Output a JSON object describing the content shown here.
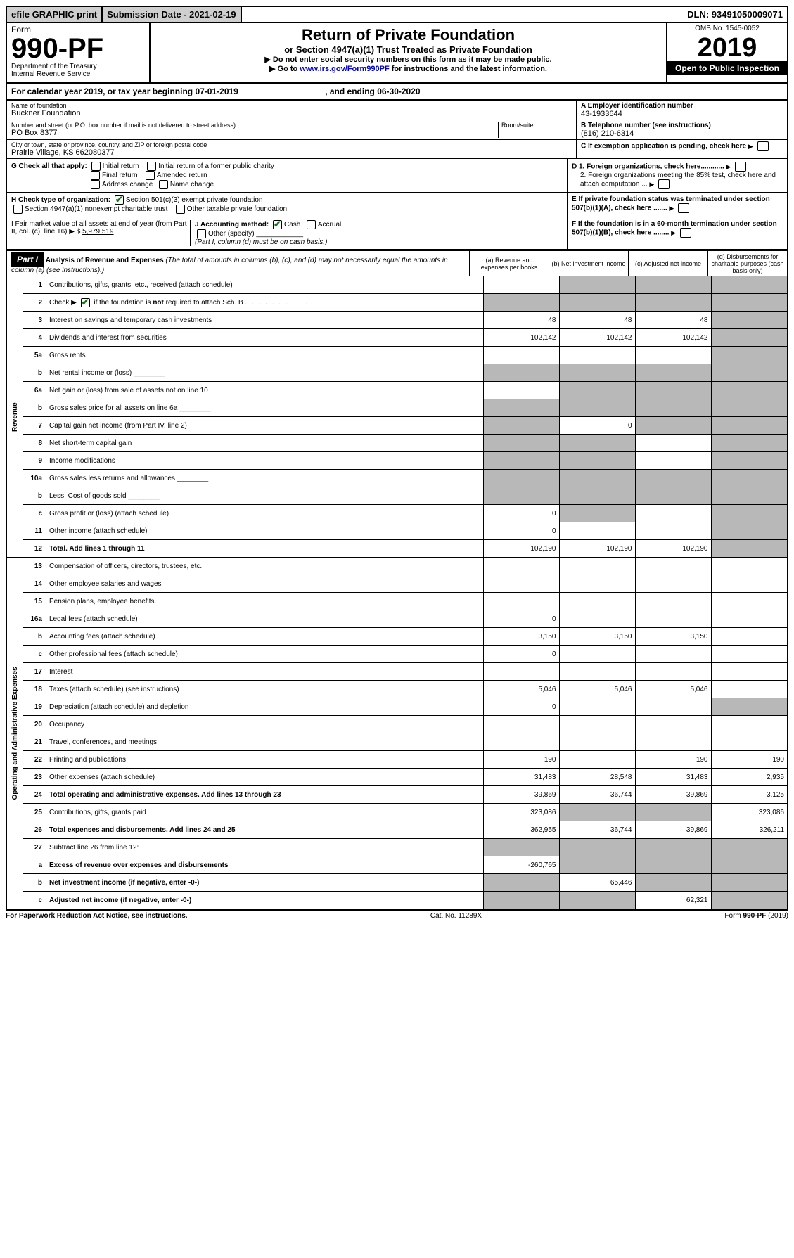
{
  "topbar": {
    "efile": "efile GRAPHIC print",
    "submission": "Submission Date - 2021-02-19",
    "dln": "DLN: 93491050009071"
  },
  "header": {
    "form_word": "Form",
    "form_no": "990-PF",
    "dept1": "Department of the Treasury",
    "dept2": "Internal Revenue Service",
    "title": "Return of Private Foundation",
    "subtitle": "or Section 4947(a)(1) Trust Treated as Private Foundation",
    "note1": "▶ Do not enter social security numbers on this form as it may be made public.",
    "note2_pre": "▶ Go to ",
    "note2_link": "www.irs.gov/Form990PF",
    "note2_post": " for instructions and the latest information.",
    "omb": "OMB No. 1545-0052",
    "year": "2019",
    "inspection": "Open to Public Inspection"
  },
  "calyear": {
    "text_pre": "For calendar year 2019, or tax year beginning ",
    "begin": "07-01-2019",
    "mid": " , and ending ",
    "end": "06-30-2020"
  },
  "id": {
    "name_label": "Name of foundation",
    "name": "Buckner Foundation",
    "addr_label": "Number and street (or P.O. box number if mail is not delivered to street address)",
    "room_label": "Room/suite",
    "addr": "PO Box 8377",
    "city_label": "City or town, state or province, country, and ZIP or foreign postal code",
    "city": "Prairie Village, KS  662080377",
    "a_label": "A Employer identification number",
    "a_val": "43-1933644",
    "b_label": "B Telephone number (see instructions)",
    "b_val": "(816) 210-6314",
    "c_label": "C If exemption application is pending, check here"
  },
  "checks": {
    "g_label": "G Check all that apply:",
    "g_opts": [
      "Initial return",
      "Initial return of a former public charity",
      "Final return",
      "Amended return",
      "Address change",
      "Name change"
    ],
    "h_label": "H Check type of organization:",
    "h1": "Section 501(c)(3) exempt private foundation",
    "h2": "Section 4947(a)(1) nonexempt charitable trust",
    "h3": "Other taxable private foundation",
    "i_label": "I Fair market value of all assets at end of year (from Part II, col. (c), line 16) ▶ $",
    "i_val": "5,979,519",
    "j_label": "J Accounting method:",
    "j_cash": "Cash",
    "j_accrual": "Accrual",
    "j_other": "Other (specify)",
    "j_note": "(Part I, column (d) must be on cash basis.)",
    "d1": "D 1. Foreign organizations, check here............",
    "d2": "2. Foreign organizations meeting the 85% test, check here and attach computation ...",
    "e": "E  If private foundation status was terminated under section 507(b)(1)(A), check here .......",
    "f": "F  If the foundation is in a 60-month termination under section 507(b)(1)(B), check here ........"
  },
  "part1": {
    "label": "Part I",
    "title": "Analysis of Revenue and Expenses",
    "title_note": "(The total of amounts in columns (b), (c), and (d) may not necessarily equal the amounts in column (a) (see instructions).)",
    "col_a": "(a)   Revenue and expenses per books",
    "col_b": "(b)  Net investment income",
    "col_c": "(c)  Adjusted net income",
    "col_d": "(d)  Disbursements for charitable purposes (cash basis only)"
  },
  "sections": {
    "revenue": "Revenue",
    "expenses": "Operating and Administrative Expenses"
  },
  "rows": [
    {
      "n": "1",
      "t": "Contributions, gifts, grants, etc., received (attach schedule)",
      "a": "",
      "b": "g",
      "c": "g",
      "d": "g"
    },
    {
      "n": "2",
      "t": "Check ▶ [x] if the foundation is not required to attach Sch. B",
      "a": "g",
      "b": "g",
      "c": "g",
      "d": "g",
      "check": true
    },
    {
      "n": "3",
      "t": "Interest on savings and temporary cash investments",
      "a": "48",
      "b": "48",
      "c": "48",
      "d": "g"
    },
    {
      "n": "4",
      "t": "Dividends and interest from securities",
      "a": "102,142",
      "b": "102,142",
      "c": "102,142",
      "d": "g"
    },
    {
      "n": "5a",
      "t": "Gross rents",
      "a": "",
      "b": "",
      "c": "",
      "d": "g"
    },
    {
      "n": "b",
      "t": "Net rental income or (loss)",
      "a": "g",
      "b": "g",
      "c": "g",
      "d": "g",
      "blank": true
    },
    {
      "n": "6a",
      "t": "Net gain or (loss) from sale of assets not on line 10",
      "a": "",
      "b": "g",
      "c": "g",
      "d": "g"
    },
    {
      "n": "b",
      "t": "Gross sales price for all assets on line 6a",
      "a": "g",
      "b": "g",
      "c": "g",
      "d": "g",
      "blank": true
    },
    {
      "n": "7",
      "t": "Capital gain net income (from Part IV, line 2)",
      "a": "g",
      "b": "0",
      "c": "g",
      "d": "g"
    },
    {
      "n": "8",
      "t": "Net short-term capital gain",
      "a": "g",
      "b": "g",
      "c": "",
      "d": "g"
    },
    {
      "n": "9",
      "t": "Income modifications",
      "a": "g",
      "b": "g",
      "c": "",
      "d": "g"
    },
    {
      "n": "10a",
      "t": "Gross sales less returns and allowances",
      "a": "g",
      "b": "g",
      "c": "g",
      "d": "g",
      "blank": true
    },
    {
      "n": "b",
      "t": "Less: Cost of goods sold",
      "a": "g",
      "b": "g",
      "c": "g",
      "d": "g",
      "blank": true
    },
    {
      "n": "c",
      "t": "Gross profit or (loss) (attach schedule)",
      "a": "0",
      "b": "g",
      "c": "",
      "d": "g"
    },
    {
      "n": "11",
      "t": "Other income (attach schedule)",
      "a": "0",
      "b": "",
      "c": "",
      "d": "g"
    },
    {
      "n": "12",
      "t": "Total. Add lines 1 through 11",
      "a": "102,190",
      "b": "102,190",
      "c": "102,190",
      "d": "g",
      "bold": true
    }
  ],
  "exp_rows": [
    {
      "n": "13",
      "t": "Compensation of officers, directors, trustees, etc.",
      "a": "",
      "b": "",
      "c": "",
      "d": ""
    },
    {
      "n": "14",
      "t": "Other employee salaries and wages",
      "a": "",
      "b": "",
      "c": "",
      "d": ""
    },
    {
      "n": "15",
      "t": "Pension plans, employee benefits",
      "a": "",
      "b": "",
      "c": "",
      "d": ""
    },
    {
      "n": "16a",
      "t": "Legal fees (attach schedule)",
      "a": "0",
      "b": "",
      "c": "",
      "d": ""
    },
    {
      "n": "b",
      "t": "Accounting fees (attach schedule)",
      "a": "3,150",
      "b": "3,150",
      "c": "3,150",
      "d": ""
    },
    {
      "n": "c",
      "t": "Other professional fees (attach schedule)",
      "a": "0",
      "b": "",
      "c": "",
      "d": ""
    },
    {
      "n": "17",
      "t": "Interest",
      "a": "",
      "b": "",
      "c": "",
      "d": ""
    },
    {
      "n": "18",
      "t": "Taxes (attach schedule) (see instructions)",
      "a": "5,046",
      "b": "5,046",
      "c": "5,046",
      "d": ""
    },
    {
      "n": "19",
      "t": "Depreciation (attach schedule) and depletion",
      "a": "0",
      "b": "",
      "c": "",
      "d": "g"
    },
    {
      "n": "20",
      "t": "Occupancy",
      "a": "",
      "b": "",
      "c": "",
      "d": ""
    },
    {
      "n": "21",
      "t": "Travel, conferences, and meetings",
      "a": "",
      "b": "",
      "c": "",
      "d": ""
    },
    {
      "n": "22",
      "t": "Printing and publications",
      "a": "190",
      "b": "",
      "c": "190",
      "d": "190"
    },
    {
      "n": "23",
      "t": "Other expenses (attach schedule)",
      "a": "31,483",
      "b": "28,548",
      "c": "31,483",
      "d": "2,935"
    },
    {
      "n": "24",
      "t": "Total operating and administrative expenses. Add lines 13 through 23",
      "a": "39,869",
      "b": "36,744",
      "c": "39,869",
      "d": "3,125",
      "bold": true
    },
    {
      "n": "25",
      "t": "Contributions, gifts, grants paid",
      "a": "323,086",
      "b": "g",
      "c": "g",
      "d": "323,086"
    },
    {
      "n": "26",
      "t": "Total expenses and disbursements. Add lines 24 and 25",
      "a": "362,955",
      "b": "36,744",
      "c": "39,869",
      "d": "326,211",
      "bold": true
    },
    {
      "n": "27",
      "t": "Subtract line 26 from line 12:",
      "a": "g",
      "b": "g",
      "c": "g",
      "d": "g"
    },
    {
      "n": "a",
      "t": "Excess of revenue over expenses and disbursements",
      "a": "-260,765",
      "b": "g",
      "c": "g",
      "d": "g",
      "bold": true
    },
    {
      "n": "b",
      "t": "Net investment income (if negative, enter -0-)",
      "a": "g",
      "b": "65,446",
      "c": "g",
      "d": "g",
      "bold": true
    },
    {
      "n": "c",
      "t": "Adjusted net income (if negative, enter -0-)",
      "a": "g",
      "b": "g",
      "c": "62,321",
      "d": "g",
      "bold": true
    }
  ],
  "footer": {
    "left": "For Paperwork Reduction Act Notice, see instructions.",
    "mid": "Cat. No. 11289X",
    "right": "Form 990-PF (2019)"
  }
}
